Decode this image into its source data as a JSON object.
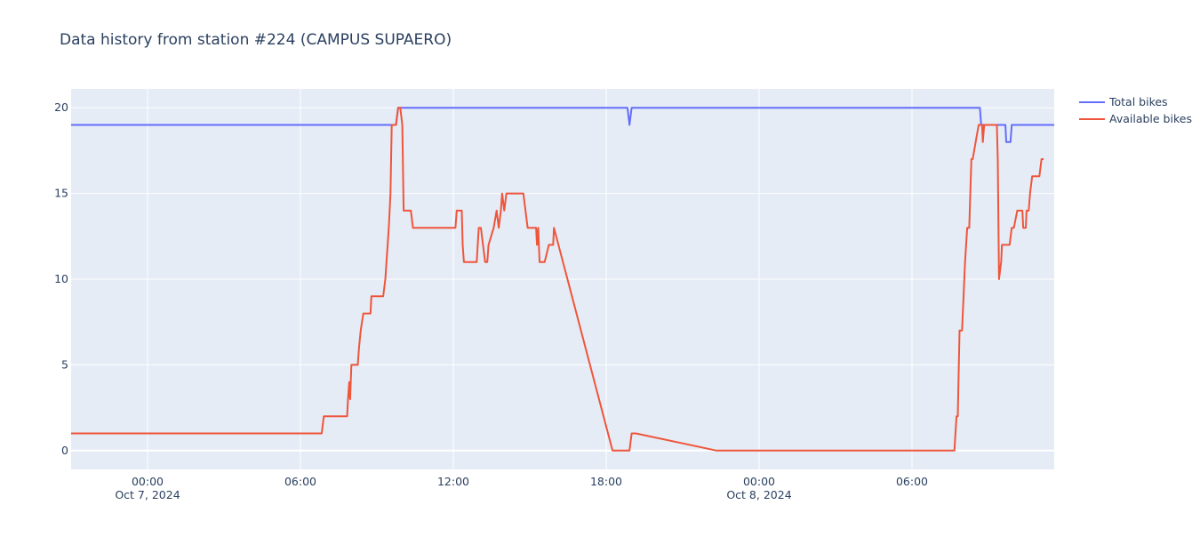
{
  "chart_data": {
    "type": "line",
    "title": "Data history from station #224 (CAMPUS SUPAERO)",
    "xlabel": "",
    "ylabel": "",
    "xlim": [
      "2024-10-06T21:00",
      "2024-10-08T11:35"
    ],
    "ylim": [
      -1.1,
      21.1
    ],
    "y_ticks": [
      0,
      5,
      10,
      15,
      20
    ],
    "x_ticks": [
      {
        "at": "2024-10-07T00:00",
        "label": "00:00",
        "sublabel": "Oct 7, 2024"
      },
      {
        "at": "2024-10-07T06:00",
        "label": "06:00",
        "sublabel": ""
      },
      {
        "at": "2024-10-07T12:00",
        "label": "12:00",
        "sublabel": ""
      },
      {
        "at": "2024-10-07T18:00",
        "label": "18:00",
        "sublabel": ""
      },
      {
        "at": "2024-10-08T00:00",
        "label": "00:00",
        "sublabel": "Oct 8, 2024"
      },
      {
        "at": "2024-10-08T06:00",
        "label": "06:00",
        "sublabel": ""
      }
    ],
    "grid": true,
    "legend_position": "top-right",
    "series": [
      {
        "name": "Total bikes",
        "color": "#636efa",
        "points": [
          [
            "2024-10-06T21:00",
            19
          ],
          [
            "2024-10-07T09:45",
            19
          ],
          [
            "2024-10-07T09:50",
            20
          ],
          [
            "2024-10-07T18:50",
            20
          ],
          [
            "2024-10-07T18:55",
            19
          ],
          [
            "2024-10-07T19:00",
            20
          ],
          [
            "2024-10-08T08:40",
            20
          ],
          [
            "2024-10-08T08:43",
            19
          ],
          [
            "2024-10-08T09:40",
            19
          ],
          [
            "2024-10-08T09:42",
            18
          ],
          [
            "2024-10-08T09:52",
            18
          ],
          [
            "2024-10-08T09:55",
            19
          ],
          [
            "2024-10-08T11:35",
            19
          ]
        ]
      },
      {
        "name": "Available bikes",
        "color": "#ef553b",
        "points": [
          [
            "2024-10-06T21:00",
            1
          ],
          [
            "2024-10-07T06:50",
            1
          ],
          [
            "2024-10-07T06:55",
            2
          ],
          [
            "2024-10-07T07:50",
            2
          ],
          [
            "2024-10-07T07:52",
            3
          ],
          [
            "2024-10-07T07:55",
            4
          ],
          [
            "2024-10-07T07:57",
            3
          ],
          [
            "2024-10-07T08:00",
            5
          ],
          [
            "2024-10-07T08:15",
            5
          ],
          [
            "2024-10-07T08:18",
            6
          ],
          [
            "2024-10-07T08:22",
            7
          ],
          [
            "2024-10-07T08:28",
            8
          ],
          [
            "2024-10-07T08:45",
            8
          ],
          [
            "2024-10-07T08:47",
            9
          ],
          [
            "2024-10-07T09:15",
            9
          ],
          [
            "2024-10-07T09:20",
            10
          ],
          [
            "2024-10-07T09:28",
            13
          ],
          [
            "2024-10-07T09:32",
            15
          ],
          [
            "2024-10-07T09:35",
            19
          ],
          [
            "2024-10-07T09:45",
            19
          ],
          [
            "2024-10-07T09:50",
            20
          ],
          [
            "2024-10-07T09:55",
            20
          ],
          [
            "2024-10-07T10:00",
            19
          ],
          [
            "2024-10-07T10:03",
            14
          ],
          [
            "2024-10-07T10:20",
            14
          ],
          [
            "2024-10-07T10:25",
            13
          ],
          [
            "2024-10-07T12:05",
            13
          ],
          [
            "2024-10-07T12:08",
            14
          ],
          [
            "2024-10-07T12:20",
            14
          ],
          [
            "2024-10-07T12:22",
            12
          ],
          [
            "2024-10-07T12:25",
            11
          ],
          [
            "2024-10-07T12:55",
            11
          ],
          [
            "2024-10-07T13:00",
            13
          ],
          [
            "2024-10-07T13:05",
            13
          ],
          [
            "2024-10-07T13:15",
            11
          ],
          [
            "2024-10-07T13:20",
            11
          ],
          [
            "2024-10-07T13:23",
            12
          ],
          [
            "2024-10-07T13:35",
            13
          ],
          [
            "2024-10-07T13:42",
            14
          ],
          [
            "2024-10-07T13:47",
            13
          ],
          [
            "2024-10-07T13:52",
            14
          ],
          [
            "2024-10-07T13:55",
            15
          ],
          [
            "2024-10-07T14:00",
            14
          ],
          [
            "2024-10-07T14:05",
            15
          ],
          [
            "2024-10-07T14:45",
            15
          ],
          [
            "2024-10-07T14:55",
            13
          ],
          [
            "2024-10-07T15:15",
            13
          ],
          [
            "2024-10-07T15:17",
            12
          ],
          [
            "2024-10-07T15:20",
            13
          ],
          [
            "2024-10-07T15:23",
            11
          ],
          [
            "2024-10-07T15:35",
            11
          ],
          [
            "2024-10-07T15:45",
            12
          ],
          [
            "2024-10-07T15:55",
            12
          ],
          [
            "2024-10-07T15:57",
            13
          ],
          [
            "2024-10-07T18:15",
            0
          ],
          [
            "2024-10-07T18:55",
            0
          ],
          [
            "2024-10-07T19:00",
            1
          ],
          [
            "2024-10-07T19:10",
            1
          ],
          [
            "2024-10-07T22:20",
            0
          ],
          [
            "2024-10-08T07:40",
            0
          ],
          [
            "2024-10-08T07:45",
            2
          ],
          [
            "2024-10-08T07:48",
            2
          ],
          [
            "2024-10-08T07:52",
            7
          ],
          [
            "2024-10-08T07:58",
            7
          ],
          [
            "2024-10-08T08:05",
            11
          ],
          [
            "2024-10-08T08:10",
            13
          ],
          [
            "2024-10-08T08:15",
            13
          ],
          [
            "2024-10-08T08:20",
            17
          ],
          [
            "2024-10-08T08:23",
            17
          ],
          [
            "2024-10-08T08:30",
            18
          ],
          [
            "2024-10-08T08:37",
            19
          ],
          [
            "2024-10-08T08:45",
            19
          ],
          [
            "2024-10-08T08:47",
            18
          ],
          [
            "2024-10-08T08:50",
            19
          ],
          [
            "2024-10-08T09:20",
            19
          ],
          [
            "2024-10-08T09:22",
            17
          ],
          [
            "2024-10-08T09:25",
            10
          ],
          [
            "2024-10-08T09:30",
            11
          ],
          [
            "2024-10-08T09:32",
            12
          ],
          [
            "2024-10-08T09:50",
            12
          ],
          [
            "2024-10-08T09:55",
            13
          ],
          [
            "2024-10-08T10:00",
            13
          ],
          [
            "2024-10-08T10:08",
            14
          ],
          [
            "2024-10-08T10:20",
            14
          ],
          [
            "2024-10-08T10:22",
            13
          ],
          [
            "2024-10-08T10:28",
            13
          ],
          [
            "2024-10-08T10:30",
            14
          ],
          [
            "2024-10-08T10:35",
            14
          ],
          [
            "2024-10-08T10:38",
            15
          ],
          [
            "2024-10-08T10:43",
            16
          ],
          [
            "2024-10-08T11:00",
            16
          ],
          [
            "2024-10-08T11:05",
            17
          ],
          [
            "2024-10-08T11:10",
            17
          ]
        ]
      }
    ]
  }
}
